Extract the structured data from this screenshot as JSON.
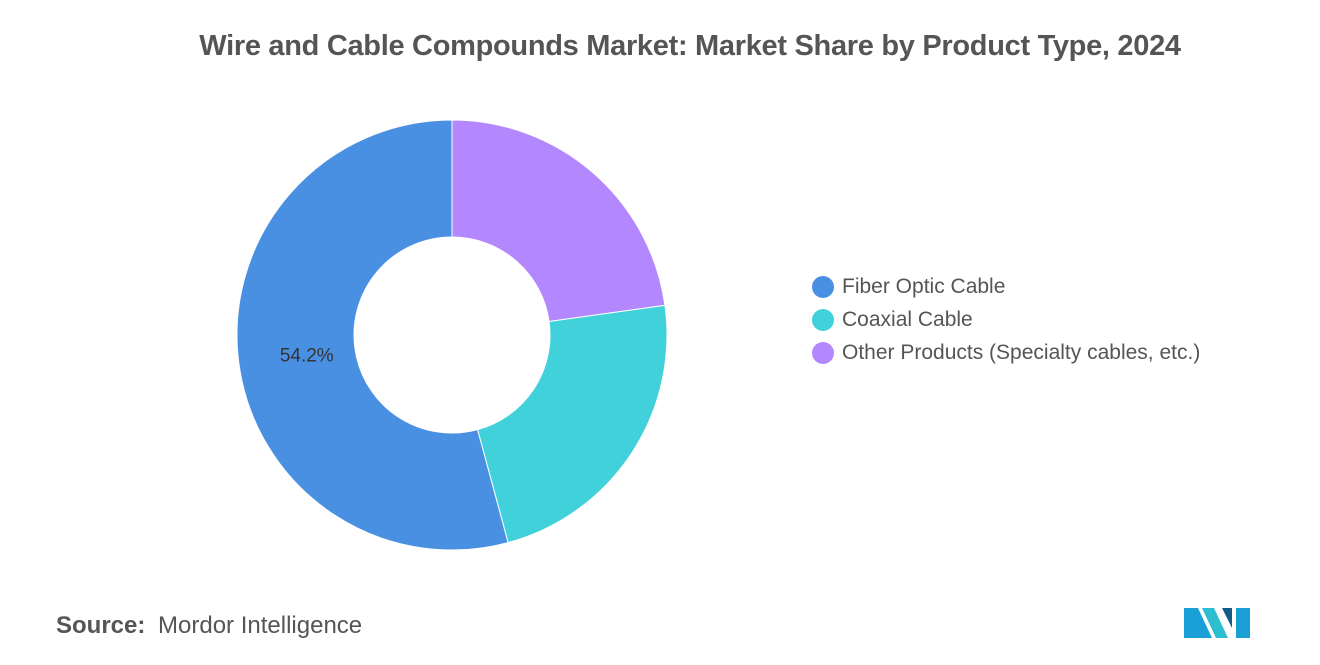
{
  "title": "Wire and Cable Compounds Market: Market Share by Product Type, 2024",
  "source": {
    "label": "Source:",
    "value": "Mordor Intelligence"
  },
  "logo": {
    "icon": "mordor-intelligence-logo",
    "colors": [
      "#1a9fd6",
      "#2dbfcf",
      "#135c8a"
    ]
  },
  "chart_data": {
    "type": "pie",
    "variant": "donut",
    "categories": [
      "Fiber Optic Cable",
      "Coaxial Cable",
      "Other Products (Specialty cables, etc.)"
    ],
    "values": [
      54.2,
      23.0,
      22.8
    ],
    "colors": [
      "#4a90e2",
      "#40d1da",
      "#b388ff"
    ],
    "data_labels": [
      "54.2%",
      "",
      ""
    ],
    "legend_position": "right"
  }
}
